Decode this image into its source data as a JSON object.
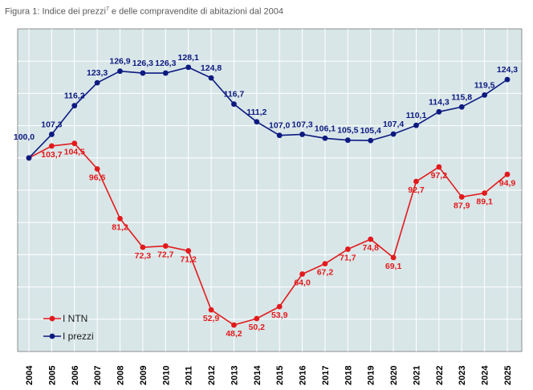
{
  "caption": {
    "text_before": "Figura 1: Indice dei prezzi",
    "superscript": "7",
    "text_after": " e delle compravendite di abitazioni dal 2004"
  },
  "chart_data": {
    "type": "line",
    "title": "",
    "xlabel": "",
    "ylabel": "",
    "x": [
      "2004",
      "2005",
      "2006",
      "2007",
      "2008",
      "2009",
      "2010",
      "2011",
      "2012",
      "2013",
      "2014",
      "2015",
      "2016",
      "2017",
      "2018",
      "2019",
      "2020",
      "2021",
      "2022",
      "2023",
      "2024",
      "2025"
    ],
    "series": [
      {
        "name": "I NTN",
        "color": "#e31a1c",
        "values": [
          100.0,
          103.7,
          104.5,
          96.6,
          81.2,
          72.3,
          72.7,
          71.2,
          52.9,
          48.2,
          50.2,
          53.9,
          64.0,
          67.2,
          71.7,
          74.8,
          69.1,
          92.7,
          97.2,
          87.9,
          89.1,
          94.9
        ],
        "labels": [
          "",
          "103,7",
          "104,5",
          "96,6",
          "81,2",
          "72,3",
          "72,7",
          "71,2",
          "52,9",
          "48,2",
          "50,2",
          "53,9",
          "64,0",
          "67,2",
          "71,7",
          "74,8",
          "69,1",
          "92,7",
          "97,2",
          "87,9",
          "89,1",
          "94,9"
        ]
      },
      {
        "name": "I prezzi",
        "color": "#0d1a80",
        "values": [
          100.0,
          107.3,
          116.2,
          123.3,
          126.9,
          126.3,
          126.3,
          128.1,
          124.8,
          116.7,
          111.2,
          107.0,
          107.3,
          106.1,
          105.5,
          105.4,
          107.4,
          110.1,
          114.3,
          115.8,
          119.5,
          124.3
        ],
        "labels": [
          "100,0",
          "107,3",
          "116,2",
          "123,3",
          "126,9",
          "126,3",
          "126,3",
          "128,1",
          "124,8",
          "116,7",
          "111,2",
          "107,0",
          "107,3",
          "106,1",
          "105,5",
          "105,4",
          "107,4",
          "110,1",
          "114,3",
          "115,8",
          "119,5",
          "124,3"
        ]
      }
    ],
    "ylim": [
      40,
      140
    ],
    "grid": true,
    "legend_position": "bottom-left"
  }
}
